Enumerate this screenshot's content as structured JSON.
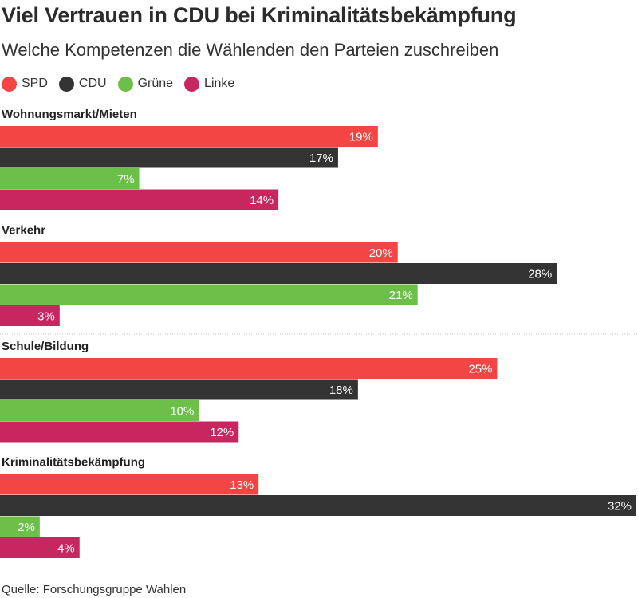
{
  "title": "Viel Vertrauen in CDU bei Kriminalitätsbekämpfung",
  "subtitle": "Welche Kompetenzen die Wählenden den Parteien zuschreiben",
  "source": "Quelle: Forschungsgruppe Wahlen",
  "chart_data": {
    "type": "bar",
    "orientation": "horizontal",
    "title": "Viel Vertrauen in CDU bei Kriminalitätsbekämpfung",
    "subtitle": "Welche Kompetenzen die Wählenden den Parteien zuschreiben",
    "legend_position": "top-left",
    "value_suffix": "%",
    "xlim": [
      0,
      32
    ],
    "grid": false,
    "categories": [
      "Wohnungsmarkt/Mieten",
      "Verkehr",
      "Schule/Bildung",
      "Kriminalitätsbekämpfung"
    ],
    "series": [
      {
        "name": "SPD",
        "color": "#f44545",
        "values": [
          19,
          20,
          25,
          13
        ]
      },
      {
        "name": "CDU",
        "color": "#333333",
        "values": [
          17,
          28,
          18,
          32
        ]
      },
      {
        "name": "Grüne",
        "color": "#6cc04a",
        "values": [
          7,
          21,
          10,
          2
        ]
      },
      {
        "name": "Linke",
        "color": "#c8265f",
        "values": [
          14,
          3,
          12,
          4
        ]
      }
    ]
  }
}
